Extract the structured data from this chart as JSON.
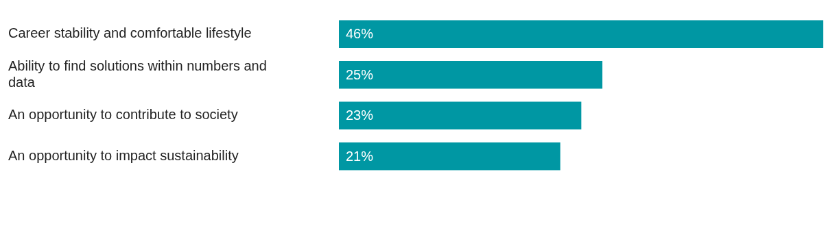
{
  "chart_data": {
    "type": "bar",
    "orientation": "horizontal",
    "categories": [
      "Career stability and comfortable lifestyle",
      "Ability to find solutions within numbers and data",
      "An opportunity to contribute to society",
      "An opportunity to impact sustainability"
    ],
    "values": [
      46,
      25,
      23,
      21
    ],
    "value_labels": [
      "46%",
      "25%",
      "23%",
      "21%"
    ],
    "color": "#0097a3",
    "legend": false
  }
}
